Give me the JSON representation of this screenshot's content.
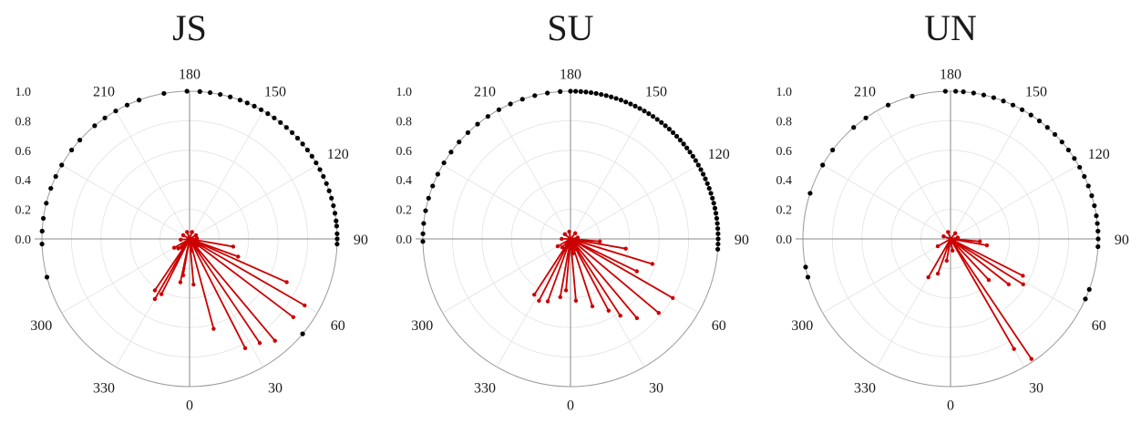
{
  "chart_data": [
    {
      "type": "scatter",
      "subtype": "polar",
      "title": "JS",
      "angle_ticks": [
        "0",
        "30",
        "60",
        "90",
        "120",
        "150",
        "180",
        "210",
        "300",
        "330"
      ],
      "radial_ticks": [
        "0.0",
        "0.2",
        "0.4",
        "0.6",
        "0.8",
        "1.0"
      ],
      "rlim": [
        0,
        1
      ],
      "grid": true,
      "series": [
        {
          "color": "#000000",
          "points": [
            {
              "theta": 95.0,
              "r": 1.0
            },
            {
              "theta": 97.0,
              "r": 1.0
            },
            {
              "theta": 100.0,
              "r": 1.0
            },
            {
              "theta": 103.0,
              "r": 1.0
            },
            {
              "theta": 106.0,
              "r": 1.0
            },
            {
              "theta": 109.0,
              "r": 1.0
            },
            {
              "theta": 112.0,
              "r": 1.0
            },
            {
              "theta": 115.0,
              "r": 1.0
            },
            {
              "theta": 118.0,
              "r": 1.0
            },
            {
              "theta": 121.0,
              "r": 1.0
            },
            {
              "theta": 124.0,
              "r": 1.0
            },
            {
              "theta": 127.0,
              "r": 1.0
            },
            {
              "theta": 130.0,
              "r": 1.0
            },
            {
              "theta": 133.0,
              "r": 1.0
            },
            {
              "theta": 136.0,
              "r": 1.0
            },
            {
              "theta": 139.0,
              "r": 1.0
            },
            {
              "theta": 142.0,
              "r": 1.0
            },
            {
              "theta": 145.0,
              "r": 1.0
            },
            {
              "theta": 148.0,
              "r": 1.0
            },
            {
              "theta": 151.0,
              "r": 1.0
            },
            {
              "theta": 154.0,
              "r": 1.0
            },
            {
              "theta": 157.0,
              "r": 1.0
            },
            {
              "theta": 160.0,
              "r": 1.0
            },
            {
              "theta": 164.0,
              "r": 1.0
            },
            {
              "theta": 168.0,
              "r": 1.0
            },
            {
              "theta": 172.0,
              "r": 1.0
            },
            {
              "theta": 176.0,
              "r": 1.0
            },
            {
              "theta": 181.0,
              "r": 1.0
            },
            {
              "theta": 190.0,
              "r": 1.0
            },
            {
              "theta": 200.0,
              "r": 1.0
            },
            {
              "theta": 205.0,
              "r": 1.0
            },
            {
              "theta": 210.0,
              "r": 1.0
            },
            {
              "theta": 215.0,
              "r": 1.0
            },
            {
              "theta": 220.0,
              "r": 1.0
            },
            {
              "theta": 228.0,
              "r": 1.0
            },
            {
              "theta": 233.0,
              "r": 1.0
            },
            {
              "theta": 240.0,
              "r": 1.0
            },
            {
              "theta": 245.0,
              "r": 1.0
            },
            {
              "theta": 250.0,
              "r": 1.0
            },
            {
              "theta": 256.0,
              "r": 1.0
            },
            {
              "theta": 262.0,
              "r": 1.0
            },
            {
              "theta": 267.0,
              "r": 1.0
            },
            {
              "theta": 272.0,
              "r": 1.0
            },
            {
              "theta": 285.0,
              "r": 1.0
            },
            {
              "theta": 50.0,
              "r": 1.0
            },
            {
              "theta": 88.0,
              "r": 1.0
            },
            {
              "theta": 90.0,
              "r": 1.0
            },
            {
              "theta": 92.0,
              "r": 1.0
            }
          ]
        },
        {
          "color": "#cc0000",
          "points": [
            {
              "theta": 60.0,
              "r": 0.9
            },
            {
              "theta": 53.0,
              "r": 0.88
            },
            {
              "theta": 40.0,
              "r": 0.9
            },
            {
              "theta": 34.0,
              "r": 0.85
            },
            {
              "theta": 27.0,
              "r": 0.83
            },
            {
              "theta": 66.0,
              "r": 0.72
            },
            {
              "theta": 15.0,
              "r": 0.63
            },
            {
              "theta": 330.0,
              "r": 0.47
            },
            {
              "theta": 326.0,
              "r": 0.42
            },
            {
              "theta": 333.0,
              "r": 0.42
            },
            {
              "theta": 5.0,
              "r": 0.31
            },
            {
              "theta": 348.0,
              "r": 0.3
            },
            {
              "theta": 70.0,
              "r": 0.35
            },
            {
              "theta": 80.0,
              "r": 0.3
            },
            {
              "theta": 350.0,
              "r": 0.25
            },
            {
              "theta": 300.0,
              "r": 0.12
            },
            {
              "theta": 310.0,
              "r": 0.1
            },
            {
              "theta": 320.0,
              "r": 0.08
            },
            {
              "theta": 10.0,
              "r": 0.08
            },
            {
              "theta": 45.0,
              "r": 0.07
            },
            {
              "theta": 95.0,
              "r": 0.05
            },
            {
              "theta": 120.0,
              "r": 0.05
            },
            {
              "theta": 160.0,
              "r": 0.05
            },
            {
              "theta": 200.0,
              "r": 0.05
            },
            {
              "theta": 240.0,
              "r": 0.05
            },
            {
              "theta": 275.0,
              "r": 0.06
            }
          ]
        }
      ]
    },
    {
      "type": "scatter",
      "subtype": "polar",
      "title": "SU",
      "angle_ticks": [
        "0",
        "30",
        "60",
        "90",
        "120",
        "150",
        "180",
        "210",
        "300",
        "330"
      ],
      "radial_ticks": [
        "0.0",
        "0.2",
        "0.4",
        "0.6",
        "0.8",
        "1.0"
      ],
      "rlim": [
        0,
        1
      ],
      "grid": true,
      "series": [
        {
          "color": "#000000",
          "points": [
            {
              "theta": 92.0,
              "r": 1.0
            },
            {
              "theta": 94.0,
              "r": 1.0
            },
            {
              "theta": 96.0,
              "r": 1.0
            },
            {
              "theta": 98.0,
              "r": 1.0
            },
            {
              "theta": 100.0,
              "r": 1.0
            },
            {
              "theta": 102.0,
              "r": 1.0
            },
            {
              "theta": 104.0,
              "r": 1.0
            },
            {
              "theta": 106.0,
              "r": 1.0
            },
            {
              "theta": 108.0,
              "r": 1.0
            },
            {
              "theta": 110.0,
              "r": 1.0
            },
            {
              "theta": 112.0,
              "r": 1.0
            },
            {
              "theta": 114.0,
              "r": 1.0
            },
            {
              "theta": 116.0,
              "r": 1.0
            },
            {
              "theta": 118.0,
              "r": 1.0
            },
            {
              "theta": 120.0,
              "r": 1.0
            },
            {
              "theta": 122.0,
              "r": 1.0
            },
            {
              "theta": 124.0,
              "r": 1.0
            },
            {
              "theta": 126.0,
              "r": 1.0
            },
            {
              "theta": 128.0,
              "r": 1.0
            },
            {
              "theta": 130.0,
              "r": 1.0
            },
            {
              "theta": 132.0,
              "r": 1.0
            },
            {
              "theta": 134.0,
              "r": 1.0
            },
            {
              "theta": 136.0,
              "r": 1.0
            },
            {
              "theta": 138.0,
              "r": 1.0
            },
            {
              "theta": 140.0,
              "r": 1.0
            },
            {
              "theta": 142.0,
              "r": 1.0
            },
            {
              "theta": 144.0,
              "r": 1.0
            },
            {
              "theta": 146.0,
              "r": 1.0
            },
            {
              "theta": 148.0,
              "r": 1.0
            },
            {
              "theta": 150.0,
              "r": 1.0
            },
            {
              "theta": 152.0,
              "r": 1.0
            },
            {
              "theta": 154.0,
              "r": 1.0
            },
            {
              "theta": 156.0,
              "r": 1.0
            },
            {
              "theta": 158.0,
              "r": 1.0
            },
            {
              "theta": 160.0,
              "r": 1.0
            },
            {
              "theta": 162.0,
              "r": 1.0
            },
            {
              "theta": 164.0,
              "r": 1.0
            },
            {
              "theta": 166.0,
              "r": 1.0
            },
            {
              "theta": 168.0,
              "r": 1.0
            },
            {
              "theta": 170.0,
              "r": 1.0
            },
            {
              "theta": 172.0,
              "r": 1.0
            },
            {
              "theta": 174.0,
              "r": 1.0
            },
            {
              "theta": 176.0,
              "r": 1.0
            },
            {
              "theta": 178.0,
              "r": 1.0
            },
            {
              "theta": 180.0,
              "r": 1.0
            },
            {
              "theta": 184.0,
              "r": 1.0
            },
            {
              "theta": 189.0,
              "r": 1.0
            },
            {
              "theta": 194.0,
              "r": 1.0
            },
            {
              "theta": 199.0,
              "r": 1.0
            },
            {
              "theta": 204.0,
              "r": 1.0
            },
            {
              "theta": 209.0,
              "r": 1.0
            },
            {
              "theta": 214.0,
              "r": 1.0
            },
            {
              "theta": 219.0,
              "r": 1.0
            },
            {
              "theta": 224.0,
              "r": 1.0
            },
            {
              "theta": 229.0,
              "r": 1.0
            },
            {
              "theta": 234.0,
              "r": 1.0
            },
            {
              "theta": 239.0,
              "r": 1.0
            },
            {
              "theta": 244.0,
              "r": 1.0
            },
            {
              "theta": 249.0,
              "r": 1.0
            },
            {
              "theta": 254.0,
              "r": 1.0
            },
            {
              "theta": 259.0,
              "r": 1.0
            },
            {
              "theta": 264.0,
              "r": 1.0
            },
            {
              "theta": 268.0,
              "r": 1.0
            },
            {
              "theta": 271.0,
              "r": 1.0
            },
            {
              "theta": 86.0,
              "r": 1.0
            },
            {
              "theta": 88.0,
              "r": 1.0
            },
            {
              "theta": 90.0,
              "r": 1.0
            }
          ]
        },
        {
          "color": "#cc0000",
          "points": [
            {
              "theta": 50.0,
              "r": 0.78
            },
            {
              "theta": 60.0,
              "r": 0.8
            },
            {
              "theta": 40.0,
              "r": 0.7
            },
            {
              "theta": 33.0,
              "r": 0.62
            },
            {
              "theta": 73.0,
              "r": 0.58
            },
            {
              "theta": 28.0,
              "r": 0.55
            },
            {
              "theta": 64.0,
              "r": 0.5
            },
            {
              "theta": 18.0,
              "r": 0.48
            },
            {
              "theta": 333.0,
              "r": 0.47
            },
            {
              "theta": 327.0,
              "r": 0.45
            },
            {
              "theta": 340.0,
              "r": 0.45
            },
            {
              "theta": 350.0,
              "r": 0.4
            },
            {
              "theta": 5.0,
              "r": 0.42
            },
            {
              "theta": 80.0,
              "r": 0.38
            },
            {
              "theta": 355.0,
              "r": 0.35
            },
            {
              "theta": 300.0,
              "r": 0.1
            },
            {
              "theta": 315.0,
              "r": 0.08
            },
            {
              "theta": 10.0,
              "r": 0.1
            },
            {
              "theta": 30.0,
              "r": 0.08
            },
            {
              "theta": 85.0,
              "r": 0.2
            },
            {
              "theta": 100.0,
              "r": 0.05
            },
            {
              "theta": 140.0,
              "r": 0.05
            },
            {
              "theta": 190.0,
              "r": 0.05
            },
            {
              "theta": 230.0,
              "r": 0.05
            },
            {
              "theta": 270.0,
              "r": 0.06
            }
          ]
        }
      ]
    },
    {
      "type": "scatter",
      "subtype": "polar",
      "title": "UN",
      "angle_ticks": [
        "0",
        "30",
        "60",
        "90",
        "120",
        "150",
        "180",
        "210",
        "300",
        "330"
      ],
      "radial_ticks": [
        "0.0",
        "0.2",
        "0.4",
        "0.6",
        "0.8",
        "1.0"
      ],
      "rlim": [
        0,
        1
      ],
      "grid": true,
      "series": [
        {
          "color": "#000000",
          "points": [
            {
              "theta": 96.0,
              "r": 1.0
            },
            {
              "theta": 99.0,
              "r": 1.0
            },
            {
              "theta": 103.0,
              "r": 1.0
            },
            {
              "theta": 107.0,
              "r": 1.0
            },
            {
              "theta": 111.0,
              "r": 1.0
            },
            {
              "theta": 115.0,
              "r": 1.0
            },
            {
              "theta": 119.0,
              "r": 1.0
            },
            {
              "theta": 123.0,
              "r": 1.0
            },
            {
              "theta": 127.0,
              "r": 1.0
            },
            {
              "theta": 131.0,
              "r": 1.0
            },
            {
              "theta": 135.0,
              "r": 1.0
            },
            {
              "theta": 139.0,
              "r": 1.0
            },
            {
              "theta": 143.0,
              "r": 1.0
            },
            {
              "theta": 147.0,
              "r": 1.0
            },
            {
              "theta": 151.0,
              "r": 1.0
            },
            {
              "theta": 155.0,
              "r": 1.0
            },
            {
              "theta": 159.0,
              "r": 1.0
            },
            {
              "theta": 163.0,
              "r": 1.0
            },
            {
              "theta": 167.0,
              "r": 1.0
            },
            {
              "theta": 171.0,
              "r": 1.0
            },
            {
              "theta": 175.0,
              "r": 1.0
            },
            {
              "theta": 178.0,
              "r": 1.0
            },
            {
              "theta": 182.0,
              "r": 1.0
            },
            {
              "theta": 195.0,
              "r": 1.0
            },
            {
              "theta": 205.0,
              "r": 1.0
            },
            {
              "theta": 215.0,
              "r": 1.0
            },
            {
              "theta": 221.0,
              "r": 1.0
            },
            {
              "theta": 233.0,
              "r": 1.0
            },
            {
              "theta": 240.0,
              "r": 1.0
            },
            {
              "theta": 252.0,
              "r": 1.0
            },
            {
              "theta": 281.0,
              "r": 1.0
            },
            {
              "theta": 285.0,
              "r": 1.0
            },
            {
              "theta": 66.0,
              "r": 1.0
            },
            {
              "theta": 70.0,
              "r": 1.0
            },
            {
              "theta": 87.0,
              "r": 1.0
            },
            {
              "theta": 90.0,
              "r": 1.0
            },
            {
              "theta": 93.0,
              "r": 1.0
            }
          ]
        },
        {
          "color": "#cc0000",
          "points": [
            {
              "theta": 34.0,
              "r": 0.98
            },
            {
              "theta": 30.0,
              "r": 0.86
            },
            {
              "theta": 58.0,
              "r": 0.58
            },
            {
              "theta": 63.0,
              "r": 0.55
            },
            {
              "theta": 52.0,
              "r": 0.5
            },
            {
              "theta": 43.0,
              "r": 0.38
            },
            {
              "theta": 80.0,
              "r": 0.25
            },
            {
              "theta": 330.0,
              "r": 0.3
            },
            {
              "theta": 340.0,
              "r": 0.25
            },
            {
              "theta": 350.0,
              "r": 0.15
            },
            {
              "theta": 300.0,
              "r": 0.1
            },
            {
              "theta": 10.0,
              "r": 0.08
            },
            {
              "theta": 85.0,
              "r": 0.2
            },
            {
              "theta": 100.0,
              "r": 0.05
            },
            {
              "theta": 140.0,
              "r": 0.05
            },
            {
              "theta": 200.0,
              "r": 0.05
            },
            {
              "theta": 250.0,
              "r": 0.05
            }
          ]
        }
      ]
    }
  ]
}
